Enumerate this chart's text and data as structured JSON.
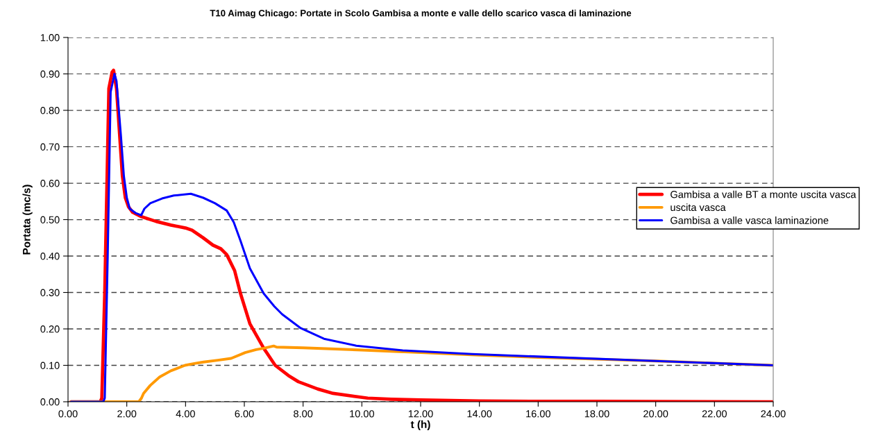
{
  "chart_data": {
    "type": "line",
    "title": "T10 Aimag Chicago: Portate in Scolo Gambisa a monte e valle dello scarico vasca di laminazione",
    "xlabel": "t (h)",
    "ylabel": "Portata (mc/s)",
    "xlim": [
      0,
      24
    ],
    "xticks": [
      {
        "value": 0,
        "label": "0.00"
      },
      {
        "value": 2,
        "label": "2.00"
      },
      {
        "value": 4,
        "label": "4.00"
      },
      {
        "value": 6,
        "label": "6.00"
      },
      {
        "value": 8,
        "label": "8.00"
      },
      {
        "value": 10,
        "label": "10.00"
      },
      {
        "value": 12,
        "label": "12.00"
      },
      {
        "value": 14,
        "label": "14.00"
      },
      {
        "value": 16,
        "label": "16.00"
      },
      {
        "value": 18,
        "label": "18.00"
      },
      {
        "value": 20,
        "label": "20.00"
      },
      {
        "value": 22,
        "label": "22.00"
      },
      {
        "value": 24,
        "label": "24.00"
      }
    ],
    "ylim": [
      0,
      1
    ],
    "yticks": [
      {
        "value": 0,
        "label": "0.00"
      },
      {
        "value": 0.1,
        "label": "0.10"
      },
      {
        "value": 0.2,
        "label": "0.20"
      },
      {
        "value": 0.3,
        "label": "0.30"
      },
      {
        "value": 0.4,
        "label": "0.40"
      },
      {
        "value": 0.5,
        "label": "0.50"
      },
      {
        "value": 0.6,
        "label": "0.60"
      },
      {
        "value": 0.7,
        "label": "0.70"
      },
      {
        "value": 0.8,
        "label": "0.80"
      },
      {
        "value": 0.9,
        "label": "0.90"
      },
      {
        "value": 1,
        "label": "1.00"
      }
    ],
    "grid": "y",
    "legend": "right",
    "marker": "none",
    "line_style": "solid",
    "series": [
      {
        "name": "Gambisa a valle BT a monte uscita vasca",
        "color": "#ff0000",
        "x": [
          0.1,
          1.1,
          1.15,
          1.25,
          1.39,
          1.5,
          1.55,
          1.65,
          1.75,
          1.85,
          1.95,
          2.06,
          2.2,
          2.5,
          3.0,
          3.5,
          4.0,
          4.22,
          4.6,
          4.93,
          5.2,
          5.4,
          5.67,
          5.87,
          6.19,
          6.66,
          7.05,
          7.5,
          7.84,
          8.5,
          9.02,
          10.2,
          11,
          12,
          14,
          16,
          18,
          24
        ],
        "values": [
          0,
          0,
          0.01,
          0.3,
          0.86,
          0.905,
          0.91,
          0.86,
          0.74,
          0.62,
          0.56,
          0.535,
          0.52,
          0.508,
          0.495,
          0.485,
          0.477,
          0.471,
          0.45,
          0.43,
          0.42,
          0.404,
          0.36,
          0.297,
          0.214,
          0.147,
          0.1,
          0.072,
          0.055,
          0.035,
          0.023,
          0.01,
          0.007,
          0.005,
          0.002,
          0.001,
          0.001,
          0
        ]
      },
      {
        "name": "uscita vasca",
        "color": "#ff9900",
        "x": [
          0.1,
          2.41,
          2.5,
          2.57,
          2.8,
          3.12,
          3.5,
          3.98,
          4.3,
          4.61,
          5.1,
          5.55,
          6.03,
          6.4,
          6.66,
          7.0,
          7.1,
          8,
          10,
          12,
          14,
          16,
          18,
          20,
          22,
          24
        ],
        "values": [
          0,
          0,
          0.01,
          0.023,
          0.045,
          0.068,
          0.085,
          0.1,
          0.105,
          0.109,
          0.114,
          0.119,
          0.135,
          0.143,
          0.147,
          0.153,
          0.15,
          0.148,
          0.142,
          0.135,
          0.128,
          0.122,
          0.117,
          0.112,
          0.106,
          0.1
        ]
      },
      {
        "name": "Gambisa a valle vasca laminazione",
        "color": "#0000ff",
        "x": [
          0.1,
          1.2,
          1.25,
          1.35,
          1.45,
          1.58,
          1.65,
          1.8,
          1.9,
          2.0,
          2.1,
          2.3,
          2.49,
          2.6,
          2.8,
          3.2,
          3.6,
          4.18,
          4.6,
          5.0,
          5.4,
          5.64,
          5.87,
          6.19,
          6.66,
          7.02,
          7.29,
          7.92,
          8.71,
          9.81,
          11.39,
          13.75,
          16,
          20,
          24
        ],
        "values": [
          0,
          0,
          0.01,
          0.4,
          0.85,
          0.9,
          0.88,
          0.73,
          0.62,
          0.56,
          0.53,
          0.518,
          0.512,
          0.53,
          0.545,
          0.558,
          0.566,
          0.571,
          0.56,
          0.545,
          0.525,
          0.493,
          0.442,
          0.366,
          0.297,
          0.262,
          0.24,
          0.202,
          0.173,
          0.154,
          0.141,
          0.131,
          0.124,
          0.112,
          0.1
        ]
      }
    ]
  }
}
